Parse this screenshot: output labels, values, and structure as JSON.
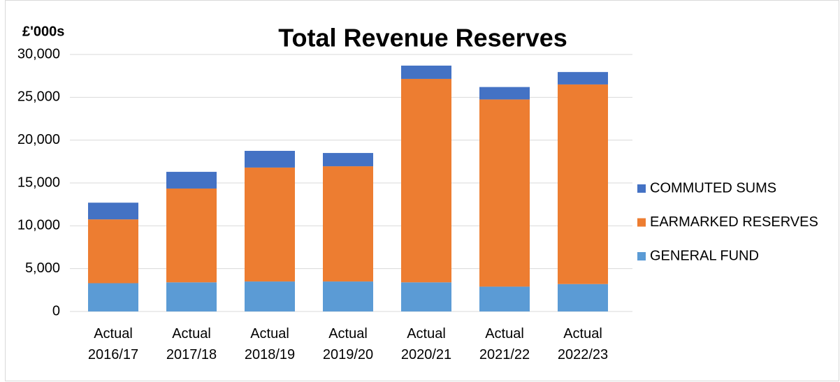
{
  "chart_data": {
    "type": "stacked_bar",
    "title": "Total Revenue Reserves",
    "y_label": "£'000s",
    "categories": [
      "Actual 2016/17",
      "Actual 2017/18",
      "Actual 2018/19",
      "Actual 2019/20",
      "Actual 2020/21",
      "Actual 2021/22",
      "Actual 2022/23"
    ],
    "series": [
      {
        "name": "GENERAL FUND",
        "color": "#5b9bd5",
        "values": [
          3300,
          3400,
          3500,
          3500,
          3400,
          2900,
          3200
        ]
      },
      {
        "name": "EARMARKED RESERVES",
        "color": "#ed7d31",
        "values": [
          7450,
          10950,
          13300,
          13450,
          23750,
          21850,
          23300
        ]
      },
      {
        "name": "COMMUTED SUMS",
        "color": "#4472c4",
        "values": [
          1950,
          1950,
          1950,
          1550,
          1550,
          1450,
          1450
        ]
      }
    ],
    "ylim": [
      0,
      30000
    ],
    "yticks": [
      0,
      {
        "value": 5000,
        "label": "5,000"
      },
      {
        "value": 10000,
        "label": "10,000"
      },
      {
        "value": 15000,
        "label": "15,000"
      },
      {
        "value": 20000,
        "label": "20,000"
      },
      {
        "value": 25000,
        "label": "25,000"
      },
      {
        "value": 30000,
        "label": "30,000"
      }
    ],
    "grid": true,
    "legend": "right"
  }
}
